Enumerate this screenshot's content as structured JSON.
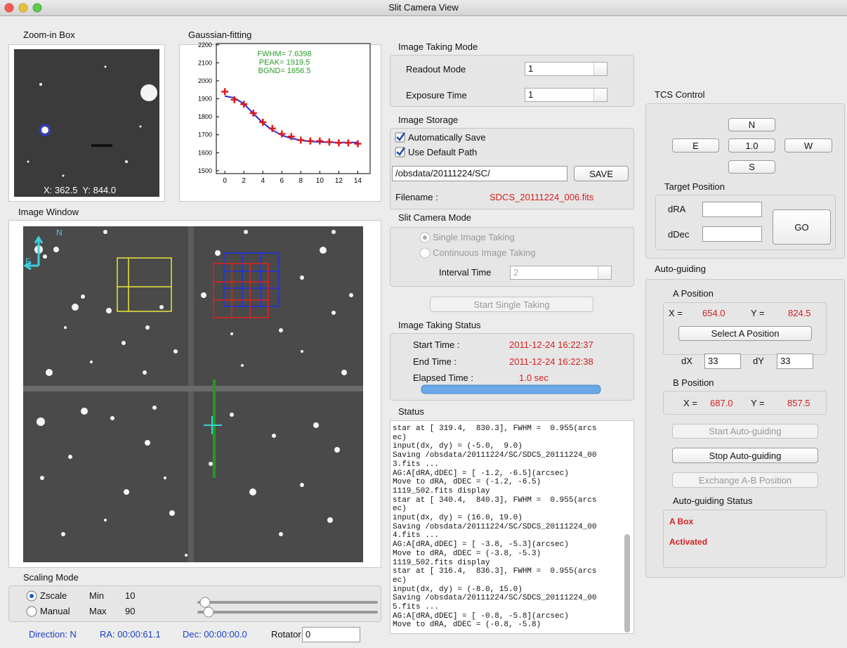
{
  "window_title": "Slit Camera View",
  "zoom_box": {
    "title": "Zoom-in Box",
    "coords": "X: 362.5  Y: 844.0"
  },
  "gaussian_plot": {
    "title": "Gaussian-fitting",
    "annotations": [
      "FWHM= 7.6398",
      "PEAK= 1919.5",
      "BGND= 1656.5"
    ],
    "x": [
      0,
      1,
      2,
      3,
      4,
      5,
      6,
      7,
      8,
      9,
      10,
      11,
      12,
      13,
      14
    ],
    "values": [
      1940,
      1895,
      1870,
      1820,
      1770,
      1735,
      1705,
      1690,
      1670,
      1665,
      1665,
      1660,
      1655,
      1655,
      1650
    ],
    "fit": [
      1915,
      1905,
      1872,
      1818,
      1766,
      1726,
      1697,
      1680,
      1669,
      1663,
      1660,
      1658,
      1657,
      1657,
      1657
    ],
    "xlim": [
      -0.9,
      15.3
    ],
    "ylim": [
      1484,
      2207
    ],
    "xticks": [
      0,
      2,
      4,
      6,
      8,
      10,
      12,
      14
    ],
    "yticks": [
      1500,
      1600,
      1700,
      1800,
      1900,
      2000,
      2100,
      2200
    ]
  },
  "image_window": {
    "title": "Image Window",
    "compass": [
      "N",
      "E"
    ]
  },
  "scaling_mode": {
    "title": "Scaling Mode",
    "options": [
      "Zscale",
      "Manual"
    ],
    "min_label": "Min",
    "min": "10",
    "max_label": "Max",
    "max": "90"
  },
  "footer": {
    "direction": "Direction: N",
    "ra": "RA: 00:00:61.1",
    "dec": "Dec: 00:00:00.0",
    "rotator_label": "Rotator",
    "rotator": "0"
  },
  "image_taking_mode": {
    "title": "Image Taking Mode",
    "readout_label": "Readout Mode",
    "readout": "1",
    "exposure_label": "Exposure Time",
    "exposure": "1"
  },
  "image_storage": {
    "title": "Image Storage",
    "auto_save": "Automatically Save",
    "default_path": "Use Default Path",
    "path": "/obsdata/20111224/SC/",
    "save": "SAVE",
    "filename_label": "Filename :",
    "filename": "SDCS_20111224_006.fits"
  },
  "slit_camera_mode": {
    "title": "Slit Camera Mode",
    "single": "Single Image Taking",
    "continuous": "Continuous Image Taking",
    "interval_label": "Interval Time",
    "interval": "2",
    "start": "Start Single Taking"
  },
  "image_taking_status": {
    "title": "Image Taking Status",
    "start_label": "Start Time :",
    "start": "2011-12-24 16:22:37",
    "end_label": "End Time :",
    "end": "2011-12-24 16:22:38",
    "elapsed_label": "Elapsed Time :",
    "elapsed": "1.0 sec"
  },
  "status_log": {
    "title": "Status",
    "lines": [
      "star at [ 319.4,  830.3], FWHM =  0.955(arcs",
      "ec)",
      "input(dx, dy) = (-5.0,  9.0)",
      "Saving /obsdata/20111224/SC/SDCS_20111224_00",
      "3.fits ...",
      "AG:A[dRA,dDEC] = [ -1.2, -6.5](arcsec)",
      "Move to dRA, dDEC = (-1.2, -6.5)",
      "1119_502.fits display",
      "star at [ 340.4,  840.3], FWHM =  0.955(arcs",
      "ec)",
      "input(dx, dy) = (16.0, 19.0)",
      "Saving /obsdata/20111224/SC/SDCS_20111224_00",
      "4.fits ...",
      "AG:A[dRA,dDEC] = [ -3.8, -5.3](arcsec)",
      "Move to dRA, dDEC = (-3.8, -5.3)",
      "1119_502.fits display",
      "star at [ 316.4,  836.3], FWHM =  0.955(arcs",
      "ec)",
      "input(dx, dy) = (-8.0, 15.0)",
      "Saving /obsdata/20111224/SC/SDCS_20111224_00",
      "5.fits ...",
      "AG:A[dRA,dDEC] = [ -0.8, -5.8](arcsec)",
      "Move to dRA, dDEC = (-0.8, -5.8)"
    ]
  },
  "tcs_control": {
    "title": "TCS Control",
    "north": "N",
    "east": "E",
    "step": "1.0",
    "west": "W",
    "south": "S",
    "target_title": "Target Position",
    "dra_label": "dRA",
    "ddec_label": "dDec",
    "go": "GO"
  },
  "auto_guiding": {
    "title": "Auto-guiding",
    "a_title": "A Position",
    "a_x_label": "X =",
    "a_x": "654.0",
    "a_y_label": "Y =",
    "a_y": "824.5",
    "select_a": "Select A Position",
    "dx_label": "dX",
    "dx": "33",
    "dy_label": "dY",
    "dy": "33",
    "b_title": "B Position",
    "b_x_label": "X =",
    "b_x": "687.0",
    "b_y_label": "Y =",
    "b_y": "857.5",
    "start": "Start Auto-guiding",
    "stop": "Stop Auto-guiding",
    "exchange": "Exchange A-B Position",
    "status_title": "Auto-guiding Status",
    "status": [
      "A Box",
      "Activated"
    ]
  }
}
